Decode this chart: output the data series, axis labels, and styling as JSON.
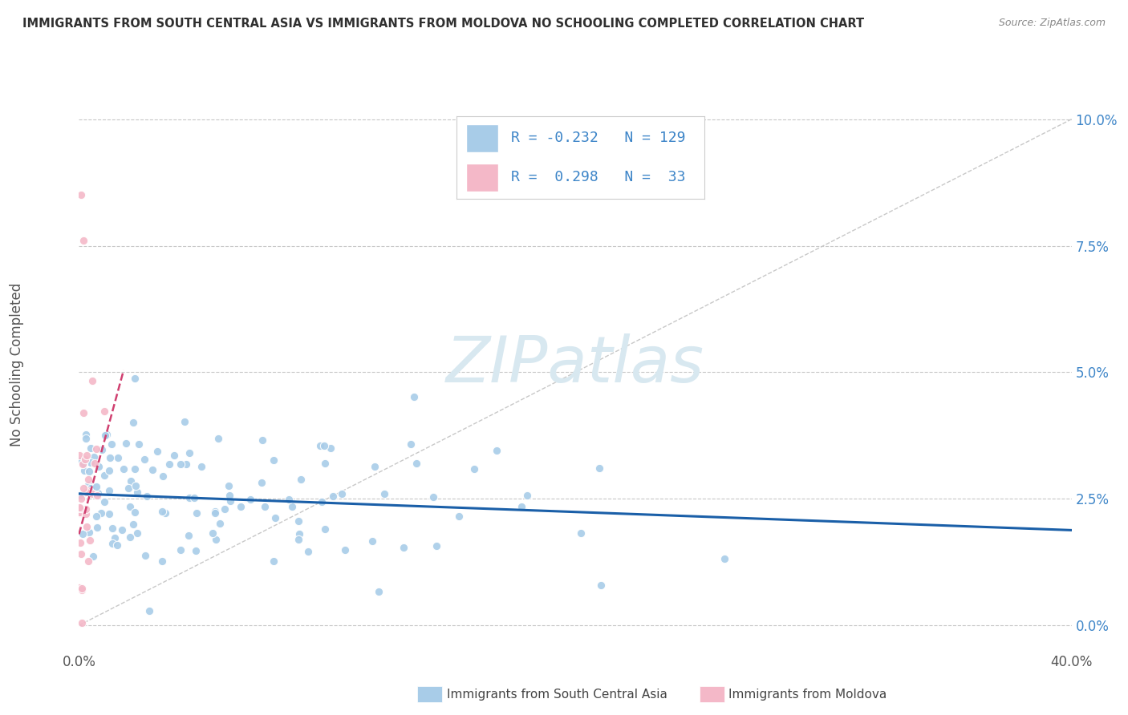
{
  "title": "IMMIGRANTS FROM SOUTH CENTRAL ASIA VS IMMIGRANTS FROM MOLDOVA NO SCHOOLING COMPLETED CORRELATION CHART",
  "source": "Source: ZipAtlas.com",
  "ylabel": "No Schooling Completed",
  "ytick_vals": [
    0.0,
    2.5,
    5.0,
    7.5,
    10.0
  ],
  "xlim": [
    0.0,
    40.0
  ],
  "ylim": [
    -0.5,
    10.8
  ],
  "blue_R": -0.232,
  "blue_N": 129,
  "pink_R": 0.298,
  "pink_N": 33,
  "blue_color": "#a8cce8",
  "pink_color": "#f4b8c8",
  "blue_line_color": "#1a5fa8",
  "pink_line_color": "#d04070",
  "legend_R_color": "#3d85c8",
  "legend_N_color": "#3d85c8",
  "watermark_color": "#d8e8f0",
  "bg_color": "#ffffff",
  "grid_color": "#c8c8c8",
  "title_color": "#303030",
  "source_color": "#888888",
  "tick_color": "#3d85c8",
  "xlabel_color": "#555555",
  "ylabel_color": "#555555"
}
